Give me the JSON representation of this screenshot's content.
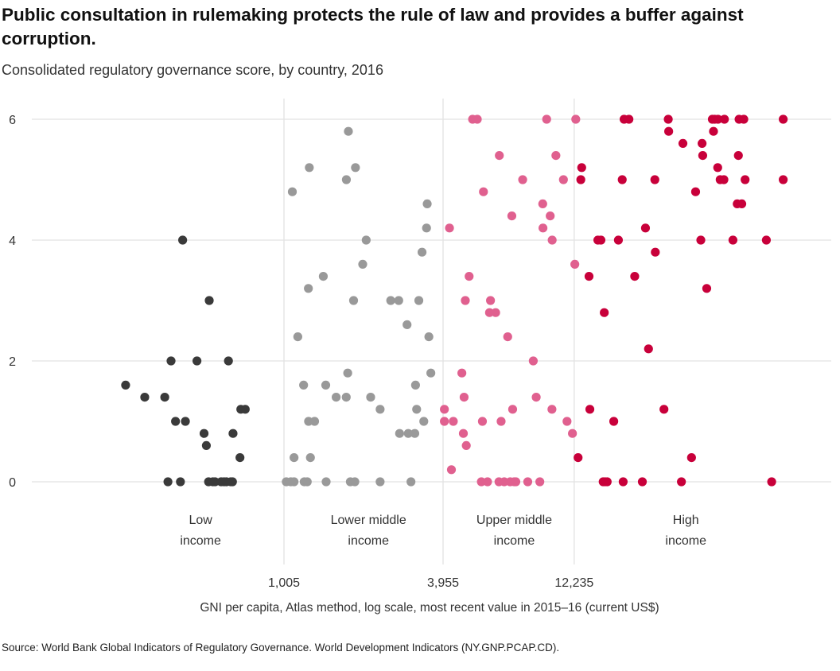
{
  "title": "Public consultation in rulemaking protects the rule of law and provides a buffer against corruption.",
  "subtitle": "Consolidated regulatory governance score, by country, 2016",
  "source": "Source: World Bank Global Indicators of Regulatory Governance. World Development Indicators (NY.GNP.PCAP.CD).",
  "colors": {
    "low": "#3a3a3a",
    "lower_middle": "#999999",
    "upper_middle": "#e0608f",
    "high": "#c8003a"
  },
  "chart_data": {
    "type": "scatter",
    "title": "Public consultation in rulemaking protects the rule of law and provides a buffer against corruption.",
    "subtitle": "Consolidated regulatory governance score, by country, 2016",
    "xlabel": "GNI per capita, Atlas method, log scale, most recent value in 2015–16 (current US$)",
    "ylabel": "",
    "x_scale": "log",
    "xlim": [
      150,
      100000
    ],
    "ylim": [
      -1.5,
      6.3
    ],
    "grid": true,
    "y_ticks": [
      0,
      2,
      4,
      6
    ],
    "y_tick_labels": [
      "0",
      "2",
      "4",
      "6"
    ],
    "thresholds": [
      1005,
      3955,
      12235
    ],
    "threshold_labels": [
      "1,005",
      "3,955",
      "12,235"
    ],
    "income_bands": [
      {
        "label_line1": "Low",
        "label_line2": "income",
        "x_center": 490
      },
      {
        "label_line1": "Lower middle",
        "label_line2": "income",
        "x_center": 2080
      },
      {
        "label_line1": "Upper middle",
        "label_line2": "income",
        "x_center": 7300
      },
      {
        "label_line1": "High",
        "label_line2": "income",
        "x_center": 32000
      }
    ],
    "series": [
      {
        "name": "Low income",
        "points": [
          [
            257,
            1.6
          ],
          [
            303,
            1.4
          ],
          [
            360,
            1.4
          ],
          [
            370,
            0
          ],
          [
            380,
            2
          ],
          [
            395,
            1
          ],
          [
            420,
            4
          ],
          [
            412,
            0
          ],
          [
            430,
            1
          ],
          [
            475,
            2
          ],
          [
            505,
            0.8
          ],
          [
            515,
            0.6
          ],
          [
            528,
            3
          ],
          [
            525,
            0
          ],
          [
            545,
            0
          ],
          [
            555,
            0
          ],
          [
            585,
            0
          ],
          [
            600,
            0
          ],
          [
            612,
            0
          ],
          [
            623,
            2
          ],
          [
            636,
            0
          ],
          [
            648,
            0.8
          ],
          [
            645,
            0
          ],
          [
            688,
            0.4
          ],
          [
            720,
            1.2
          ],
          [
            693,
            1.2
          ]
        ]
      },
      {
        "name": "Lower middle income",
        "points": [
          [
            1025,
            0
          ],
          [
            1066,
            0
          ],
          [
            1096,
            0
          ],
          [
            1096,
            0.4
          ],
          [
            1080,
            4.8
          ],
          [
            1132,
            2.4
          ],
          [
            1190,
            1.6
          ],
          [
            1196,
            0
          ],
          [
            1228,
            0
          ],
          [
            1240,
            3.2
          ],
          [
            1250,
            5.2
          ],
          [
            1262,
            0.4
          ],
          [
            1242,
            1
          ],
          [
            1308,
            1
          ],
          [
            1410,
            3.4
          ],
          [
            1440,
            1.6
          ],
          [
            1445,
            0
          ],
          [
            1575,
            1.4
          ],
          [
            1718,
            1.4
          ],
          [
            1720,
            5
          ],
          [
            1740,
            1.8
          ],
          [
            1750,
            5.8
          ],
          [
            1780,
            0
          ],
          [
            1830,
            3
          ],
          [
            1850,
            0
          ],
          [
            1860,
            5.2
          ],
          [
            1980,
            3.6
          ],
          [
            2040,
            4
          ],
          [
            2120,
            1.4
          ],
          [
            2300,
            1.2
          ],
          [
            2300,
            0
          ],
          [
            2520,
            3
          ],
          [
            2700,
            3
          ],
          [
            2720,
            0.8
          ],
          [
            2900,
            2.6
          ],
          [
            3000,
            0
          ],
          [
            2930,
            0.8
          ],
          [
            3100,
            0.8
          ],
          [
            3120,
            1.6
          ],
          [
            3150,
            1.2
          ],
          [
            3210,
            3
          ],
          [
            3300,
            3.8
          ],
          [
            3350,
            1
          ],
          [
            3430,
            4.2
          ],
          [
            3450,
            4.6
          ],
          [
            3560,
            1.8
          ],
          [
            3500,
            2.4
          ]
        ]
      },
      {
        "name": "Upper middle income",
        "points": [
          [
            4000,
            1.2
          ],
          [
            4000,
            1
          ],
          [
            4180,
            4.2
          ],
          [
            4250,
            0.2
          ],
          [
            4320,
            1
          ],
          [
            4710,
            0.8
          ],
          [
            4790,
            3
          ],
          [
            4650,
            1.8
          ],
          [
            4830,
            0.6
          ],
          [
            4740,
            1.4
          ],
          [
            4950,
            3.4
          ],
          [
            5100,
            6
          ],
          [
            5310,
            6
          ],
          [
            5550,
            1
          ],
          [
            5500,
            0
          ],
          [
            5600,
            4.8
          ],
          [
            5800,
            0
          ],
          [
            5900,
            2.8
          ],
          [
            5950,
            3
          ],
          [
            6220,
            2.8
          ],
          [
            6420,
            5.4
          ],
          [
            6400,
            0
          ],
          [
            6520,
            1
          ],
          [
            6700,
            0
          ],
          [
            6900,
            2.4
          ],
          [
            7050,
            0
          ],
          [
            7200,
            1.2
          ],
          [
            7300,
            0
          ],
          [
            7150,
            4.4
          ],
          [
            7400,
            0
          ],
          [
            7850,
            5
          ],
          [
            8200,
            0
          ],
          [
            8600,
            2
          ],
          [
            8820,
            1.4
          ],
          [
            9100,
            0
          ],
          [
            9330,
            4.6
          ],
          [
            9350,
            4.2
          ],
          [
            9650,
            6
          ],
          [
            9950,
            4.4
          ],
          [
            10100,
            1.2
          ],
          [
            10120,
            4
          ],
          [
            10450,
            5.4
          ],
          [
            11150,
            5
          ],
          [
            11500,
            1
          ],
          [
            12050,
            0.8
          ],
          [
            12400,
            6
          ],
          [
            12300,
            3.6
          ]
        ]
      },
      {
        "name": "High income",
        "points": [
          [
            12650,
            0.4
          ],
          [
            12950,
            5
          ],
          [
            13050,
            5.2
          ],
          [
            13900,
            3.4
          ],
          [
            14000,
            1.2
          ],
          [
            15000,
            4
          ],
          [
            15400,
            4
          ],
          [
            15700,
            0
          ],
          [
            15850,
            2.8
          ],
          [
            15950,
            0
          ],
          [
            16250,
            0
          ],
          [
            17200,
            1
          ],
          [
            17900,
            4
          ],
          [
            18500,
            5
          ],
          [
            18650,
            0
          ],
          [
            18800,
            6
          ],
          [
            19600,
            6
          ],
          [
            20600,
            3.4
          ],
          [
            22000,
            0
          ],
          [
            22600,
            4.2
          ],
          [
            23200,
            2.2
          ],
          [
            24500,
            5
          ],
          [
            24600,
            3.8
          ],
          [
            26500,
            1.2
          ],
          [
            27500,
            6
          ],
          [
            27600,
            5.8
          ],
          [
            30800,
            0
          ],
          [
            31200,
            5.6
          ],
          [
            33600,
            0.4
          ],
          [
            34800,
            4.8
          ],
          [
            36400,
            4
          ],
          [
            36800,
            5.6
          ],
          [
            37000,
            5.4
          ],
          [
            38300,
            3.2
          ],
          [
            40200,
            6
          ],
          [
            40600,
            5.8
          ],
          [
            41000,
            6
          ],
          [
            42100,
            5.2
          ],
          [
            42200,
            6
          ],
          [
            43000,
            5
          ],
          [
            44600,
            6
          ],
          [
            44400,
            5
          ],
          [
            48000,
            4
          ],
          [
            49800,
            4.6
          ],
          [
            50300,
            5.4
          ],
          [
            50600,
            6
          ],
          [
            51800,
            4.6
          ],
          [
            53300,
            5
          ],
          [
            52700,
            6
          ],
          [
            64000,
            4
          ],
          [
            67000,
            0
          ],
          [
            74000,
            6
          ],
          [
            74000,
            5
          ]
        ]
      }
    ]
  }
}
